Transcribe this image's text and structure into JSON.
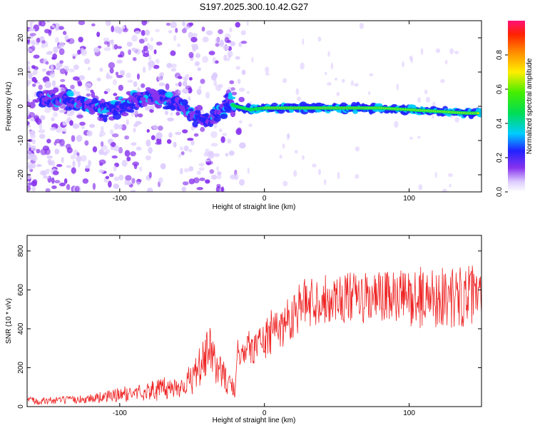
{
  "title": "S197.2025.300.10.42.G27",
  "chart_data": [
    {
      "type": "heatmap",
      "xlabel": "Height of straight line (km)",
      "ylabel": "Frequency (Hz)",
      "xlim": [
        -164,
        150
      ],
      "ylim": [
        -25,
        25
      ],
      "x_ticks": [
        -100,
        0,
        100
      ],
      "y_ticks": [
        20,
        10,
        0,
        -10,
        -20
      ],
      "colorbar": {
        "label": "Normalized spectral amplitude",
        "range": [
          0,
          1
        ],
        "ticks": [
          0.0,
          0.2,
          0.4,
          0.6,
          0.8
        ]
      },
      "ridge": [
        {
          "x": -150,
          "y": 2
        },
        {
          "x": -140,
          "y": 2.5
        },
        {
          "x": -130,
          "y": 1
        },
        {
          "x": -120,
          "y": 0
        },
        {
          "x": -110,
          "y": -1
        },
        {
          "x": -100,
          "y": 0
        },
        {
          "x": -90,
          "y": 1
        },
        {
          "x": -80,
          "y": 3
        },
        {
          "x": -70,
          "y": 2
        },
        {
          "x": -60,
          "y": 1
        },
        {
          "x": -50,
          "y": -2
        },
        {
          "x": -40,
          "y": -5
        },
        {
          "x": -35,
          "y": -3
        },
        {
          "x": -30,
          "y": -1
        },
        {
          "x": -25,
          "y": 1
        },
        {
          "x": -20,
          "y": 0
        },
        {
          "x": -10,
          "y": -1
        },
        {
          "x": 0,
          "y": -0.5
        },
        {
          "x": 20,
          "y": -0.5
        },
        {
          "x": 50,
          "y": -0.5
        },
        {
          "x": 80,
          "y": -0.5
        },
        {
          "x": 100,
          "y": -1
        },
        {
          "x": 120,
          "y": -1.5
        },
        {
          "x": 140,
          "y": -2
        }
      ]
    },
    {
      "type": "line",
      "xlabel": "Height of straight line (km)",
      "ylabel": "SNR (10 * v/v)",
      "xlim": [
        -164,
        150
      ],
      "ylim": [
        0,
        880
      ],
      "x_ticks": [
        -100,
        0,
        100
      ],
      "y_ticks": [
        0,
        200,
        400,
        600,
        800
      ],
      "series": [
        {
          "name": "SNR",
          "color": "#ee2222",
          "x": [
            -164,
            -150,
            -130,
            -110,
            -100,
            -90,
            -80,
            -70,
            -60,
            -50,
            -45,
            -40,
            -38,
            -35,
            -32,
            -30,
            -25,
            -20,
            -18,
            -15,
            -10,
            -5,
            0,
            5,
            10,
            15,
            20,
            25,
            30,
            40,
            50,
            60,
            70,
            80,
            90,
            100,
            110,
            120,
            130,
            140,
            150
          ],
          "values": [
            30,
            30,
            35,
            50,
            60,
            70,
            80,
            90,
            100,
            140,
            200,
            260,
            300,
            230,
            200,
            180,
            120,
            80,
            300,
            320,
            300,
            320,
            340,
            380,
            400,
            440,
            480,
            520,
            540,
            550,
            560,
            560,
            550,
            560,
            560,
            560,
            560,
            570,
            560,
            570,
            560
          ],
          "noise_amplitude": [
            20,
            20,
            20,
            30,
            40,
            40,
            50,
            60,
            60,
            80,
            100,
            120,
            120,
            100,
            100,
            90,
            60,
            40,
            100,
            100,
            90,
            100,
            110,
            120,
            120,
            120,
            130,
            130,
            130,
            130,
            130,
            130,
            140,
            140,
            140,
            150,
            160,
            160,
            160,
            160,
            160
          ]
        }
      ]
    }
  ]
}
